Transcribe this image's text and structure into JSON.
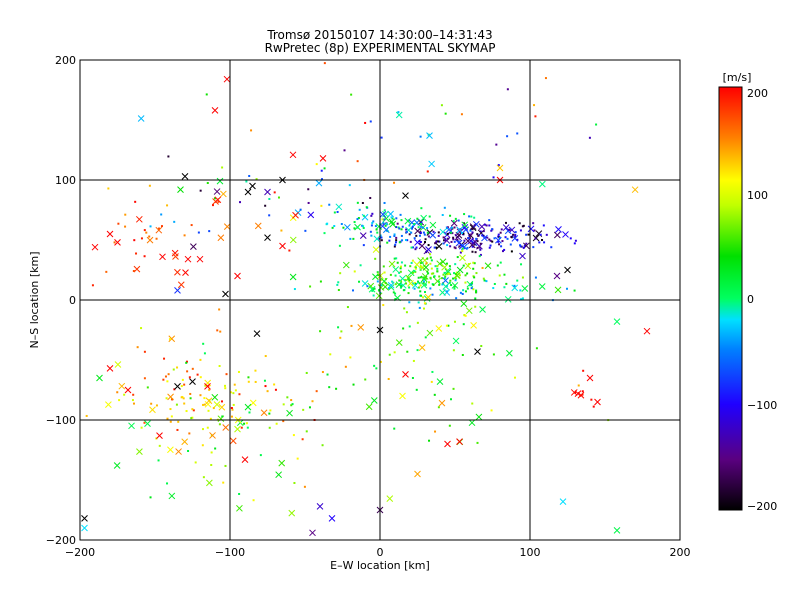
{
  "chart_data": {
    "type": "scatter",
    "title": "Tromsø 20150107 14:30:00–14:31:43",
    "subtitle": "RwPretec (8p) EXPERIMENTAL SKYMAP",
    "xlabel": "E–W location [km]",
    "ylabel": "N–S location [km]",
    "xlim": [
      -200,
      200
    ],
    "ylim": [
      -200,
      200
    ],
    "x_ticks": [
      "−200",
      "−100",
      "0",
      "100",
      "200"
    ],
    "y_ticks": [
      "200",
      "100",
      "0",
      "−100",
      "−200"
    ],
    "grid": true,
    "colorbar": {
      "label": "[m/s]",
      "range": [
        -200,
        200
      ],
      "ticks": [
        "200",
        "100",
        "0",
        "−100",
        "−200"
      ],
      "colormap": "rainbow (black–purple–blue–cyan–green–yellow–red)"
    },
    "marker_legend": "x = large markers, · = small markers",
    "clusters": [
      {
        "center": [
          60,
          52
        ],
        "spread": [
          30,
          6
        ],
        "velocity": [
          -200,
          -60
        ],
        "count": 220
      },
      {
        "center": [
          30,
          22
        ],
        "spread": [
          22,
          8
        ],
        "velocity": [
          -10,
          100
        ],
        "count": 160
      },
      {
        "center": [
          10,
          60
        ],
        "spread": [
          25,
          8
        ],
        "velocity": [
          -80,
          40
        ],
        "count": 120
      },
      {
        "center": [
          40,
          10
        ],
        "spread": [
          40,
          5
        ],
        "velocity": [
          -60,
          60
        ],
        "count": 100
      },
      {
        "center": [
          -120,
          -80
        ],
        "spread": [
          35,
          20
        ],
        "velocity": [
          80,
          200
        ],
        "count": 110
      },
      {
        "center": [
          -100,
          -100
        ],
        "spread": [
          40,
          35
        ],
        "velocity": [
          0,
          150
        ],
        "count": 80
      },
      {
        "center": [
          -80,
          80
        ],
        "spread": [
          40,
          20
        ],
        "velocity": [
          -200,
          200
        ],
        "count": 60
      },
      {
        "center": [
          20,
          -50
        ],
        "spread": [
          40,
          50
        ],
        "velocity": [
          0,
          150
        ],
        "count": 90
      },
      {
        "center": [
          -150,
          40
        ],
        "spread": [
          25,
          15
        ],
        "velocity": [
          150,
          200
        ],
        "count": 30
      },
      {
        "center": [
          140,
          -78
        ],
        "spread": [
          6,
          8
        ],
        "velocity": [
          190,
          200
        ],
        "count": 8
      },
      {
        "center": [
          20,
          150
        ],
        "spread": [
          80,
          40
        ],
        "velocity": [
          -150,
          200
        ],
        "count": 40
      }
    ],
    "scattered_points": [
      {
        "x": -102,
        "y": 184,
        "v": 200,
        "m": "x"
      },
      {
        "x": -110,
        "y": 158,
        "v": 200,
        "m": "x"
      },
      {
        "x": -58,
        "y": 121,
        "v": 200,
        "m": "x"
      },
      {
        "x": -38,
        "y": 118,
        "v": 200,
        "m": "x"
      },
      {
        "x": 80,
        "y": 100,
        "v": 200,
        "m": "x"
      },
      {
        "x": 80,
        "y": 110,
        "v": 130,
        "m": "x"
      },
      {
        "x": 33,
        "y": 137,
        "v": -30,
        "m": "x"
      },
      {
        "x": -130,
        "y": 103,
        "v": -200,
        "m": "x"
      },
      {
        "x": -85,
        "y": 95,
        "v": -200,
        "m": "x"
      },
      {
        "x": -65,
        "y": 100,
        "v": -200,
        "m": "x"
      },
      {
        "x": -88,
        "y": 90,
        "v": -200,
        "m": "x"
      },
      {
        "x": -75,
        "y": 90,
        "v": -130,
        "m": "x"
      },
      {
        "x": 17,
        "y": 87,
        "v": -200,
        "m": "x"
      },
      {
        "x": -133,
        "y": 92,
        "v": 40,
        "m": "x"
      },
      {
        "x": 140,
        "y": -65,
        "v": 200,
        "m": "x"
      },
      {
        "x": 178,
        "y": -26,
        "v": 200,
        "m": "x"
      },
      {
        "x": 158,
        "y": -18,
        "v": 0,
        "m": "x"
      },
      {
        "x": 145,
        "y": -85,
        "v": 200,
        "m": "x"
      },
      {
        "x": 132,
        "y": -78,
        "v": 200,
        "m": "x"
      },
      {
        "x": 65,
        "y": -43,
        "v": -200,
        "m": "x"
      },
      {
        "x": 0,
        "y": -25,
        "v": -200,
        "m": "x"
      },
      {
        "x": -82,
        "y": -28,
        "v": -200,
        "m": "x"
      },
      {
        "x": -103,
        "y": 5,
        "v": -200,
        "m": "x"
      },
      {
        "x": 125,
        "y": 25,
        "v": -200,
        "m": "x"
      },
      {
        "x": 118,
        "y": 20,
        "v": -150,
        "m": "x"
      },
      {
        "x": -197,
        "y": -182,
        "v": -200,
        "m": "x"
      },
      {
        "x": -197,
        "y": -190,
        "v": -20,
        "m": "x"
      },
      {
        "x": -40,
        "y": -172,
        "v": -120,
        "m": "x"
      },
      {
        "x": -32,
        "y": -182,
        "v": -100,
        "m": "x"
      },
      {
        "x": -45,
        "y": -194,
        "v": -150,
        "m": "x"
      },
      {
        "x": 0,
        "y": -175,
        "v": -170,
        "m": "x"
      },
      {
        "x": 158,
        "y": -192,
        "v": 10,
        "m": "x"
      },
      {
        "x": 122,
        "y": -168,
        "v": -20,
        "m": "x"
      },
      {
        "x": 45,
        "y": -120,
        "v": 200,
        "m": "x"
      },
      {
        "x": 53,
        "y": -118,
        "v": 200,
        "m": "x"
      },
      {
        "x": 25,
        "y": -145,
        "v": 140,
        "m": "x"
      },
      {
        "x": -90,
        "y": -133,
        "v": 200,
        "m": "x"
      },
      {
        "x": -147,
        "y": -113,
        "v": 200,
        "m": "x"
      },
      {
        "x": -180,
        "y": -57,
        "v": 200,
        "m": "x"
      },
      {
        "x": -187,
        "y": -65,
        "v": 30,
        "m": "x"
      },
      {
        "x": -155,
        "y": -103,
        "v": 10,
        "m": "x"
      },
      {
        "x": -168,
        "y": -75,
        "v": 200,
        "m": "x"
      },
      {
        "x": -125,
        "y": -68,
        "v": -200,
        "m": "x"
      },
      {
        "x": -135,
        "y": -72,
        "v": -200,
        "m": "x"
      },
      {
        "x": -115,
        "y": -72,
        "v": 200,
        "m": "x"
      },
      {
        "x": -175,
        "y": 48,
        "v": 200,
        "m": "x"
      },
      {
        "x": -180,
        "y": 55,
        "v": 200,
        "m": "x"
      },
      {
        "x": -190,
        "y": 44,
        "v": 200,
        "m": "x"
      },
      {
        "x": -145,
        "y": 36,
        "v": 200,
        "m": "x"
      },
      {
        "x": -128,
        "y": 34,
        "v": 200,
        "m": "x"
      },
      {
        "x": -120,
        "y": 34,
        "v": 200,
        "m": "x"
      },
      {
        "x": -95,
        "y": 20,
        "v": 200,
        "m": "x"
      },
      {
        "x": -135,
        "y": 8,
        "v": -80,
        "m": "x"
      },
      {
        "x": -65,
        "y": 45,
        "v": 200,
        "m": "x"
      },
      {
        "x": -75,
        "y": 52,
        "v": -200,
        "m": "x"
      },
      {
        "x": 17,
        "y": -62,
        "v": 200,
        "m": "x"
      },
      {
        "x": 40,
        "y": -68,
        "v": 20,
        "m": "x"
      },
      {
        "x": 15,
        "y": -80,
        "v": 110,
        "m": "x"
      }
    ]
  }
}
